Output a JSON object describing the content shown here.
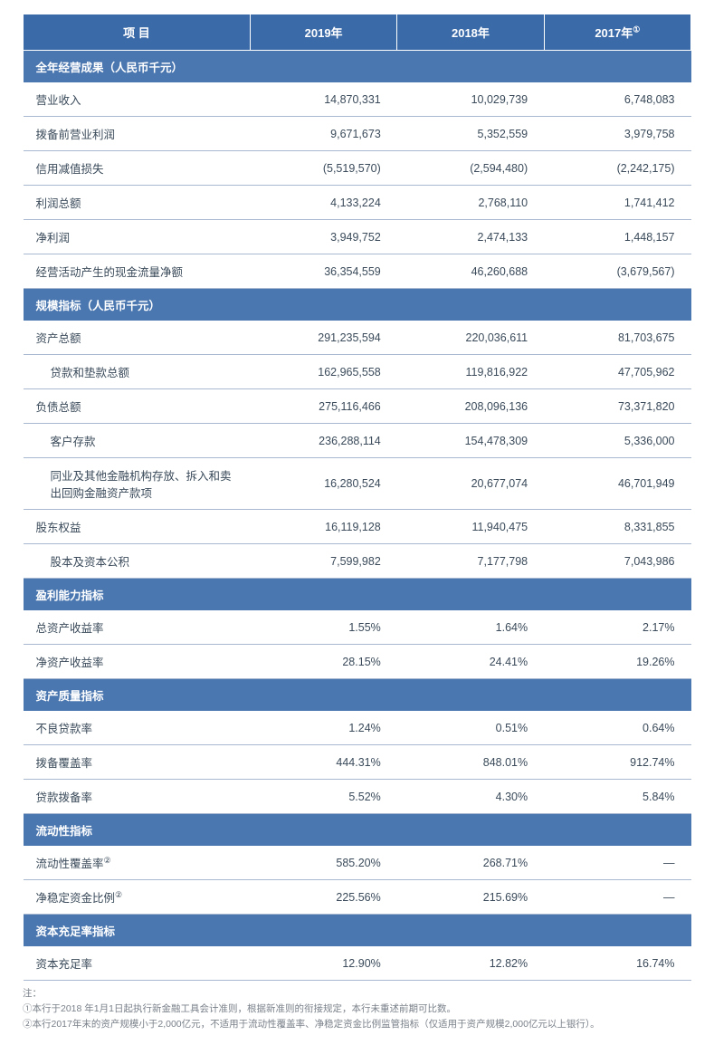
{
  "header": {
    "col_item": "项 目",
    "col_y1": "2019年",
    "col_y2": "2018年",
    "col_y3": "2017年",
    "col_y3_sup": "①"
  },
  "sections": [
    {
      "title": "全年经营成果（人民币千元）",
      "rows": [
        {
          "label": "营业收入",
          "indent": false,
          "v1": "14,870,331",
          "v2": "10,029,739",
          "v3": "6,748,083"
        },
        {
          "label": "拨备前营业利润",
          "indent": false,
          "v1": "9,671,673",
          "v2": "5,352,559",
          "v3": "3,979,758"
        },
        {
          "label": "信用减值损失",
          "indent": false,
          "v1": "(5,519,570)",
          "v2": "(2,594,480)",
          "v3": "(2,242,175)"
        },
        {
          "label": "利润总额",
          "indent": false,
          "v1": "4,133,224",
          "v2": "2,768,110",
          "v3": "1,741,412"
        },
        {
          "label": "净利润",
          "indent": false,
          "v1": "3,949,752",
          "v2": "2,474,133",
          "v3": "1,448,157"
        },
        {
          "label": "经营活动产生的现金流量净额",
          "indent": false,
          "v1": "36,354,559",
          "v2": "46,260,688",
          "v3": "(3,679,567)"
        }
      ]
    },
    {
      "title": "规模指标（人民币千元）",
      "rows": [
        {
          "label": "资产总额",
          "indent": false,
          "v1": "291,235,594",
          "v2": "220,036,611",
          "v3": "81,703,675"
        },
        {
          "label": "贷款和垫款总额",
          "indent": true,
          "v1": "162,965,558",
          "v2": "119,816,922",
          "v3": "47,705,962"
        },
        {
          "label": "负债总额",
          "indent": false,
          "v1": "275,116,466",
          "v2": "208,096,136",
          "v3": "73,371,820"
        },
        {
          "label": "客户存款",
          "indent": true,
          "v1": "236,288,114",
          "v2": "154,478,309",
          "v3": "5,336,000"
        },
        {
          "label": "同业及其他金融机构存放、拆入和卖出回购金融资产款项",
          "indent": true,
          "v1": "16,280,524",
          "v2": "20,677,074",
          "v3": "46,701,949"
        },
        {
          "label": "股东权益",
          "indent": false,
          "v1": "16,119,128",
          "v2": "11,940,475",
          "v3": "8,331,855"
        },
        {
          "label": "股本及资本公积",
          "indent": true,
          "v1": "7,599,982",
          "v2": "7,177,798",
          "v3": "7,043,986"
        }
      ]
    },
    {
      "title": "盈利能力指标",
      "rows": [
        {
          "label": "总资产收益率",
          "indent": false,
          "v1": "1.55%",
          "v2": "1.64%",
          "v3": "2.17%"
        },
        {
          "label": "净资产收益率",
          "indent": false,
          "v1": "28.15%",
          "v2": "24.41%",
          "v3": "19.26%"
        }
      ]
    },
    {
      "title": "资产质量指标",
      "rows": [
        {
          "label": "不良贷款率",
          "indent": false,
          "v1": "1.24%",
          "v2": "0.51%",
          "v3": "0.64%"
        },
        {
          "label": "拨备覆盖率",
          "indent": false,
          "v1": "444.31%",
          "v2": "848.01%",
          "v3": "912.74%"
        },
        {
          "label": "贷款拨备率",
          "indent": false,
          "v1": "5.52%",
          "v2": "4.30%",
          "v3": "5.84%"
        }
      ]
    },
    {
      "title": "流动性指标",
      "rows": [
        {
          "label": "流动性覆盖率",
          "label_sup": "②",
          "indent": false,
          "v1": "585.20%",
          "v2": "268.71%",
          "v3": "—"
        },
        {
          "label": "净稳定资金比例",
          "label_sup": "②",
          "indent": false,
          "v1": "225.56%",
          "v2": "215.69%",
          "v3": "—"
        }
      ]
    },
    {
      "title": "资本充足率指标",
      "rows": [
        {
          "label": "资本充足率",
          "indent": false,
          "v1": "12.90%",
          "v2": "12.82%",
          "v3": "16.74%"
        }
      ]
    }
  ],
  "footnotes": {
    "intro": "注：",
    "lines": [
      "①本行于2018 年1月1日起执行新金融工具会计准则，根据新准则的衔接规定，本行未重述前期可比数。",
      "②本行2017年末的资产规模小于2,000亿元，不适用于流动性覆盖率、净稳定资金比例监管指标（仅适用于资产规模2,000亿元以上银行）。"
    ]
  },
  "style": {
    "header_bg": "#3b6aa8",
    "section_bg": "#4b77b0",
    "header_text": "#ffffff",
    "row_border": "#a8b8d0",
    "text_color": "#3a4a5a",
    "footnote_color": "#7a818a",
    "font_family": "Microsoft YaHei, PingFang SC, Arial, sans-serif",
    "header_fontsize": 13,
    "body_fontsize": 12.5,
    "footnote_fontsize": 10.5,
    "col_widths_pct": [
      34,
      22,
      22,
      22
    ]
  }
}
